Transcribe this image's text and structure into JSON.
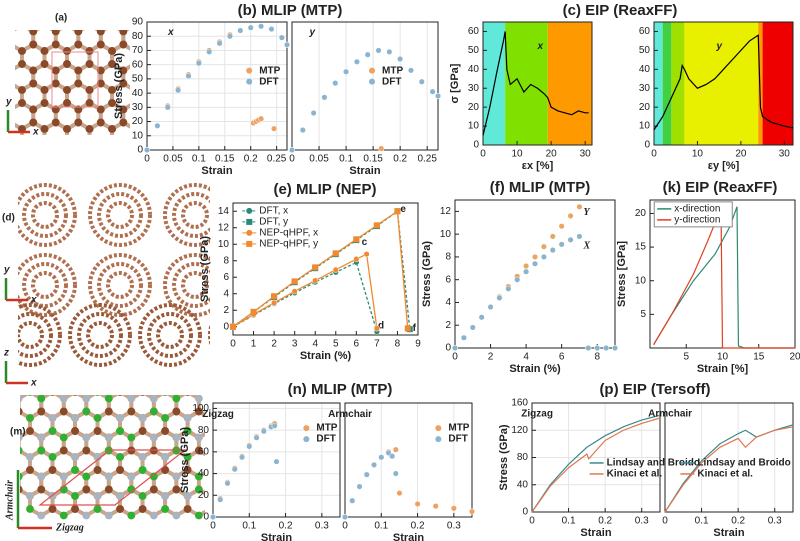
{
  "structures": [
    {
      "label": "(a)",
      "axes": [
        "y",
        "x"
      ]
    },
    {
      "label": "(d)",
      "axes": [
        "y",
        "x",
        "z",
        "x"
      ]
    },
    {
      "label": "(m)",
      "axes": [
        "Armchair",
        "Zigzag"
      ]
    }
  ],
  "chart_data": [
    {
      "type": "scatter",
      "title": "(b) MLIP (MTP)",
      "annotations": [
        "x"
      ],
      "xlabel": "Strain",
      "ylabel": "Stress (GPa)",
      "xlim": [
        0,
        0.27
      ],
      "ylim": [
        0,
        90
      ],
      "xticks": [
        0,
        0.05,
        0.1,
        0.15,
        0.2,
        0.25
      ],
      "yticks": [
        0,
        10,
        20,
        30,
        40,
        50,
        60,
        70,
        80,
        90
      ],
      "grid": true,
      "series": [
        {
          "name": "MTP",
          "color": "#f0a060",
          "x": [
            0,
            0.02,
            0.04,
            0.06,
            0.08,
            0.1,
            0.12,
            0.14,
            0.16,
            0.18,
            0.2,
            0.205,
            0.21,
            0.215,
            0.22,
            0.245
          ],
          "values": [
            0,
            17,
            31,
            43,
            53,
            62,
            70,
            76,
            81,
            84,
            86,
            19,
            20,
            21,
            22,
            15
          ]
        },
        {
          "name": "DFT",
          "color": "#8ab4d0",
          "x": [
            0,
            0.02,
            0.04,
            0.06,
            0.08,
            0.1,
            0.12,
            0.14,
            0.16,
            0.18,
            0.2,
            0.22,
            0.24,
            0.26,
            0.27
          ],
          "values": [
            0,
            17,
            30,
            42,
            52,
            61,
            69,
            75,
            80,
            84,
            86,
            87,
            85,
            79,
            74
          ]
        }
      ]
    },
    {
      "type": "scatter",
      "annotations": [
        "y"
      ],
      "xlabel": "Strain",
      "xlim": [
        0,
        0.27
      ],
      "ylim": [
        0,
        90
      ],
      "xticks": [
        0,
        0.05,
        0.1,
        0.15,
        0.2,
        0.25
      ],
      "grid": true,
      "series": [
        {
          "name": "MTP",
          "color": "#f0a060",
          "x": [
            0,
            0.02,
            0.04,
            0.06,
            0.08,
            0.1,
            0.12,
            0.14,
            0.16,
            0.165
          ],
          "values": [
            0,
            14,
            26,
            37,
            47,
            55,
            62,
            67,
            70,
            1
          ]
        },
        {
          "name": "DFT",
          "color": "#8ab4d0",
          "x": [
            0,
            0.02,
            0.04,
            0.06,
            0.08,
            0.1,
            0.12,
            0.14,
            0.16,
            0.18,
            0.2,
            0.22,
            0.24,
            0.26,
            0.27
          ],
          "values": [
            0,
            14,
            26,
            37,
            47,
            55,
            62,
            67,
            70,
            69,
            64,
            56,
            48,
            41,
            38
          ]
        }
      ]
    },
    {
      "type": "line",
      "title": "(c) EIP (ReaxFF)",
      "annotations": [
        "x"
      ],
      "xlabel": "εx [%]",
      "ylabel": "σ [GPa]",
      "xlim": [
        0,
        32
      ],
      "ylim": [
        0,
        65
      ],
      "xticks": [
        0,
        10,
        20,
        30
      ],
      "yticks": [
        0,
        10,
        20,
        30,
        40,
        50,
        60
      ],
      "regions": [
        {
          "from": 0,
          "to": 6.5,
          "color": "#60e8d8"
        },
        {
          "from": 6.5,
          "to": 19,
          "color": "#80e000"
        },
        {
          "from": 19,
          "to": 32,
          "color": "#ff9900"
        }
      ],
      "series": [
        {
          "color": "#000000",
          "x": [
            0,
            2,
            4,
            6,
            6.5,
            7,
            8,
            10,
            12,
            14,
            16,
            18,
            19,
            20,
            22,
            24,
            26,
            28,
            30,
            31
          ],
          "values": [
            5,
            20,
            38,
            55,
            60,
            40,
            32,
            35,
            28,
            32,
            30,
            27,
            25,
            20,
            18,
            17,
            16,
            18,
            17,
            17
          ]
        }
      ]
    },
    {
      "type": "line",
      "annotations": [
        "y"
      ],
      "xlabel": "εy [%]",
      "xlim": [
        0,
        32
      ],
      "ylim": [
        0,
        65
      ],
      "xticks": [
        0,
        10,
        20,
        30
      ],
      "yticks": [
        0,
        10,
        20,
        30,
        40,
        50,
        60
      ],
      "regions": [
        {
          "from": 0,
          "to": 2,
          "color": "#60e8d8"
        },
        {
          "from": 2,
          "to": 4,
          "color": "#40d040"
        },
        {
          "from": 4,
          "to": 7,
          "color": "#a0e000"
        },
        {
          "from": 7,
          "to": 24,
          "color": "#e8f000"
        },
        {
          "from": 24,
          "to": 25,
          "color": "#ff9900"
        },
        {
          "from": 25,
          "to": 32,
          "color": "#ee0000"
        }
      ],
      "series": [
        {
          "color": "#000000",
          "x": [
            0,
            2,
            4,
            6,
            6.5,
            7,
            8,
            10,
            12,
            14,
            16,
            18,
            20,
            22,
            24,
            24.5,
            25,
            27,
            30,
            32
          ],
          "values": [
            8,
            15,
            25,
            35,
            42,
            40,
            35,
            30,
            32,
            35,
            40,
            45,
            50,
            55,
            58,
            20,
            15,
            12,
            10,
            9
          ]
        }
      ]
    },
    {
      "type": "line",
      "title": "(e) MLIP (NEP)",
      "annotations": [
        "c",
        "d",
        "e",
        "f"
      ],
      "xlabel": "Strain (%)",
      "ylabel": "Stress (GPa)",
      "xlim": [
        0,
        9
      ],
      "ylim": [
        -1,
        15
      ],
      "xticks": [
        0,
        1,
        2,
        3,
        4,
        5,
        6,
        7,
        8,
        9
      ],
      "yticks": [
        0,
        2,
        4,
        6,
        8,
        10,
        12,
        14
      ],
      "series": [
        {
          "name": "DFT, x",
          "color": "#2a8a7a",
          "marker": "circle",
          "dash": true,
          "x": [
            0,
            1,
            2,
            3,
            4,
            5,
            6,
            7
          ],
          "values": [
            0,
            1.4,
            2.8,
            4.1,
            5.4,
            6.6,
            7.8,
            -0.6
          ]
        },
        {
          "name": "DFT, y",
          "color": "#2a8a7a",
          "marker": "square",
          "dash": true,
          "x": [
            0,
            1,
            2,
            3,
            4,
            5,
            6,
            7,
            8,
            8.6
          ],
          "values": [
            0,
            1.8,
            3.6,
            5.4,
            7.1,
            8.8,
            10.5,
            12.2,
            14,
            -0.3
          ]
        },
        {
          "name": "NEP-qHPF, x",
          "color": "#f08a30",
          "marker": "circle",
          "x": [
            0,
            1,
            2,
            3,
            4,
            5,
            6,
            6.5,
            7
          ],
          "values": [
            0,
            1.5,
            2.9,
            4.3,
            5.6,
            6.9,
            8.2,
            8.8,
            -0.2
          ]
        },
        {
          "name": "NEP-qHPF, y",
          "color": "#f08a30",
          "marker": "square",
          "x": [
            0,
            1,
            2,
            3,
            4,
            5,
            6,
            7,
            8,
            8.5
          ],
          "values": [
            0,
            1.8,
            3.7,
            5.5,
            7.2,
            8.9,
            10.6,
            12.3,
            14,
            -0.2
          ]
        }
      ]
    },
    {
      "type": "scatter",
      "title": "(f) MLIP (MTP)",
      "xlabel": "Strain (%)",
      "ylabel": "Stress (GPa)",
      "xlim": [
        0,
        9
      ],
      "ylim": [
        0,
        13
      ],
      "xticks": [
        0,
        2,
        4,
        6,
        8
      ],
      "yticks": [
        0,
        2,
        4,
        6,
        8,
        10,
        12
      ],
      "series": [
        {
          "name": "Y",
          "color": "#e8a860",
          "x": [
            0,
            0.5,
            1,
            1.5,
            2,
            2.5,
            3,
            3.5,
            4,
            4.5,
            5,
            5.5,
            6,
            6.5,
            7
          ],
          "values": [
            0,
            0.9,
            1.8,
            2.7,
            3.6,
            4.5,
            5.4,
            6.3,
            7.2,
            8,
            8.9,
            9.8,
            10.7,
            11.6,
            12.4
          ]
        },
        {
          "name": "X",
          "color": "#8ab4cc",
          "x": [
            0,
            0.5,
            1,
            1.5,
            2,
            2.5,
            3,
            3.5,
            4,
            4.5,
            5,
            5.5,
            6,
            6.5,
            7,
            7.5,
            8,
            8.5,
            9
          ],
          "values": [
            0,
            0.9,
            1.8,
            2.7,
            3.6,
            4.4,
            5.2,
            6,
            6.7,
            7.4,
            8,
            8.6,
            9.1,
            9.5,
            9.8,
            0,
            0,
            0,
            0
          ]
        }
      ]
    },
    {
      "type": "line",
      "title": "(k) EIP (ReaxFF)",
      "xlabel": "Strain [%]",
      "ylabel": "Stress [GPa]",
      "xlim": [
        0,
        20
      ],
      "ylim": [
        0,
        22
      ],
      "xticks": [
        5,
        10,
        15,
        20
      ],
      "yticks": [
        5,
        10,
        15,
        20
      ],
      "series": [
        {
          "name": "x-direction",
          "color": "#2a8a70",
          "x": [
            0.5,
            3,
            6,
            9,
            11,
            12,
            12.2,
            13,
            20
          ],
          "values": [
            0.5,
            5,
            10,
            14,
            18,
            21,
            0.3,
            0,
            0
          ]
        },
        {
          "name": "y-direction",
          "color": "#e04020",
          "x": [
            0.5,
            3,
            6,
            8,
            9.5,
            9.8,
            10,
            20
          ],
          "values": [
            0.5,
            5,
            11,
            16,
            20,
            20,
            0,
            0
          ]
        }
      ]
    },
    {
      "type": "scatter",
      "title": "(n) MLIP (MTP)",
      "annotations": [
        "Zigzag"
      ],
      "xlabel": "Strain",
      "ylabel": "Stress (GPa)",
      "xlim": [
        0,
        0.35
      ],
      "ylim": [
        0,
        105
      ],
      "xticks": [
        0,
        0.1,
        0.2,
        0.3
      ],
      "yticks": [
        0,
        20,
        40,
        60,
        80,
        100
      ],
      "grid": true,
      "series": [
        {
          "name": "MTP",
          "color": "#f0a060",
          "x": [
            0,
            0.02,
            0.04,
            0.06,
            0.08,
            0.1,
            0.12,
            0.14,
            0.16,
            0.17
          ],
          "values": [
            0,
            17,
            32,
            45,
            56,
            66,
            74,
            80,
            84,
            86
          ]
        },
        {
          "name": "DFT",
          "color": "#8ab4d0",
          "x": [
            0,
            0.02,
            0.04,
            0.06,
            0.08,
            0.1,
            0.12,
            0.14,
            0.16,
            0.17,
            0.175
          ],
          "values": [
            0,
            16,
            31,
            44,
            55,
            65,
            73,
            79,
            83,
            84,
            51
          ]
        }
      ]
    },
    {
      "type": "scatter",
      "annotations": [
        "Armchair"
      ],
      "xlabel": "Strain",
      "xlim": [
        0,
        0.35
      ],
      "ylim": [
        0,
        105
      ],
      "xticks": [
        0,
        0.1,
        0.2,
        0.3
      ],
      "grid": true,
      "series": [
        {
          "name": "MTP",
          "color": "#f0a060",
          "x": [
            0,
            0.02,
            0.04,
            0.06,
            0.08,
            0.1,
            0.12,
            0.14,
            0.15,
            0.2,
            0.25,
            0.3,
            0.35
          ],
          "values": [
            0,
            15,
            28,
            39,
            48,
            55,
            60,
            62,
            22,
            12,
            10,
            8,
            5
          ]
        },
        {
          "name": "DFT",
          "color": "#8ab4d0",
          "x": [
            0,
            0.02,
            0.04,
            0.06,
            0.08,
            0.1,
            0.12,
            0.13,
            0.14
          ],
          "values": [
            0,
            15,
            28,
            39,
            48,
            55,
            59,
            56,
            40
          ]
        }
      ]
    },
    {
      "type": "line",
      "title": "(p) EIP (Tersoff)",
      "annotations": [
        "Zigzag"
      ],
      "xlabel": "Strain",
      "ylabel": "Stress (GPa)",
      "xlim": [
        0,
        0.35
      ],
      "ylim": [
        0,
        160
      ],
      "xticks": [
        0,
        0.1,
        0.2,
        0.3
      ],
      "yticks": [
        0,
        40,
        80,
        120,
        160
      ],
      "grid": true,
      "series": [
        {
          "name": "Lindsay and Broido",
          "color": "#3a8a90",
          "x": [
            0,
            0.05,
            0.1,
            0.15,
            0.2,
            0.25,
            0.3,
            0.35
          ],
          "values": [
            0,
            40,
            70,
            95,
            112,
            125,
            135,
            142
          ]
        },
        {
          "name": "Kinaci et al.",
          "color": "#e07850",
          "x": [
            0,
            0.05,
            0.1,
            0.15,
            0.155,
            0.2,
            0.25,
            0.3,
            0.35
          ],
          "values": [
            0,
            38,
            65,
            85,
            78,
            105,
            120,
            130,
            138
          ]
        }
      ]
    },
    {
      "type": "line",
      "annotations": [
        "Armchair"
      ],
      "xlabel": "Strain",
      "xlim": [
        0,
        0.35
      ],
      "ylim": [
        0,
        160
      ],
      "xticks": [
        0,
        0.1,
        0.2,
        0.3
      ],
      "grid": true,
      "series": [
        {
          "name": "Lindsay and Broido",
          "color": "#3a8a90",
          "x": [
            0,
            0.05,
            0.1,
            0.15,
            0.2,
            0.22,
            0.25,
            0.3,
            0.35
          ],
          "values": [
            0,
            42,
            75,
            100,
            115,
            120,
            110,
            120,
            128
          ]
        },
        {
          "name": "Kinaci et al.",
          "color": "#e07850",
          "x": [
            0,
            0.05,
            0.1,
            0.15,
            0.2,
            0.22,
            0.25,
            0.3,
            0.35
          ],
          "values": [
            0,
            40,
            72,
            95,
            108,
            95,
            110,
            120,
            125
          ]
        }
      ]
    }
  ]
}
